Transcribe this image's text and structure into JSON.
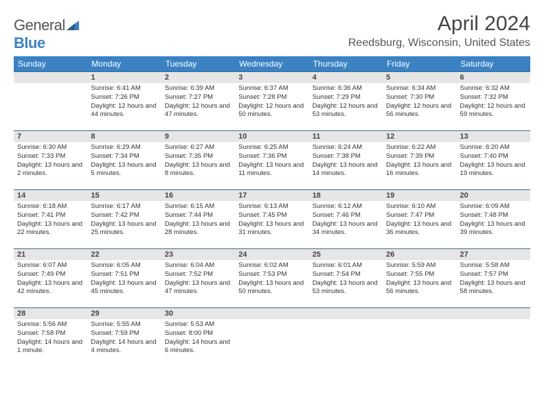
{
  "logo": {
    "textA": "General",
    "textB": "Blue"
  },
  "header": {
    "title": "April 2024",
    "location": "Reedsburg, Wisconsin, United States"
  },
  "colors": {
    "header_bg": "#3b82c4",
    "header_text": "#ffffff",
    "daynum_bg": "#e6e6e6",
    "daynum_border": "#3b6a94",
    "text": "#333333"
  },
  "weekdays": [
    "Sunday",
    "Monday",
    "Tuesday",
    "Wednesday",
    "Thursday",
    "Friday",
    "Saturday"
  ],
  "weeks": [
    [
      null,
      {
        "n": "1",
        "sunrise": "6:41 AM",
        "sunset": "7:26 PM",
        "daylight": "12 hours and 44 minutes."
      },
      {
        "n": "2",
        "sunrise": "6:39 AM",
        "sunset": "7:27 PM",
        "daylight": "12 hours and 47 minutes."
      },
      {
        "n": "3",
        "sunrise": "6:37 AM",
        "sunset": "7:28 PM",
        "daylight": "12 hours and 50 minutes."
      },
      {
        "n": "4",
        "sunrise": "6:36 AM",
        "sunset": "7:29 PM",
        "daylight": "12 hours and 53 minutes."
      },
      {
        "n": "5",
        "sunrise": "6:34 AM",
        "sunset": "7:30 PM",
        "daylight": "12 hours and 56 minutes."
      },
      {
        "n": "6",
        "sunrise": "6:32 AM",
        "sunset": "7:32 PM",
        "daylight": "12 hours and 59 minutes."
      }
    ],
    [
      {
        "n": "7",
        "sunrise": "6:30 AM",
        "sunset": "7:33 PM",
        "daylight": "13 hours and 2 minutes."
      },
      {
        "n": "8",
        "sunrise": "6:29 AM",
        "sunset": "7:34 PM",
        "daylight": "13 hours and 5 minutes."
      },
      {
        "n": "9",
        "sunrise": "6:27 AM",
        "sunset": "7:35 PM",
        "daylight": "13 hours and 8 minutes."
      },
      {
        "n": "10",
        "sunrise": "6:25 AM",
        "sunset": "7:36 PM",
        "daylight": "13 hours and 11 minutes."
      },
      {
        "n": "11",
        "sunrise": "6:24 AM",
        "sunset": "7:38 PM",
        "daylight": "13 hours and 14 minutes."
      },
      {
        "n": "12",
        "sunrise": "6:22 AM",
        "sunset": "7:39 PM",
        "daylight": "13 hours and 16 minutes."
      },
      {
        "n": "13",
        "sunrise": "6:20 AM",
        "sunset": "7:40 PM",
        "daylight": "13 hours and 19 minutes."
      }
    ],
    [
      {
        "n": "14",
        "sunrise": "6:18 AM",
        "sunset": "7:41 PM",
        "daylight": "13 hours and 22 minutes."
      },
      {
        "n": "15",
        "sunrise": "6:17 AM",
        "sunset": "7:42 PM",
        "daylight": "13 hours and 25 minutes."
      },
      {
        "n": "16",
        "sunrise": "6:15 AM",
        "sunset": "7:44 PM",
        "daylight": "13 hours and 28 minutes."
      },
      {
        "n": "17",
        "sunrise": "6:13 AM",
        "sunset": "7:45 PM",
        "daylight": "13 hours and 31 minutes."
      },
      {
        "n": "18",
        "sunrise": "6:12 AM",
        "sunset": "7:46 PM",
        "daylight": "13 hours and 34 minutes."
      },
      {
        "n": "19",
        "sunrise": "6:10 AM",
        "sunset": "7:47 PM",
        "daylight": "13 hours and 36 minutes."
      },
      {
        "n": "20",
        "sunrise": "6:09 AM",
        "sunset": "7:48 PM",
        "daylight": "13 hours and 39 minutes."
      }
    ],
    [
      {
        "n": "21",
        "sunrise": "6:07 AM",
        "sunset": "7:49 PM",
        "daylight": "13 hours and 42 minutes."
      },
      {
        "n": "22",
        "sunrise": "6:05 AM",
        "sunset": "7:51 PM",
        "daylight": "13 hours and 45 minutes."
      },
      {
        "n": "23",
        "sunrise": "6:04 AM",
        "sunset": "7:52 PM",
        "daylight": "13 hours and 47 minutes."
      },
      {
        "n": "24",
        "sunrise": "6:02 AM",
        "sunset": "7:53 PM",
        "daylight": "13 hours and 50 minutes."
      },
      {
        "n": "25",
        "sunrise": "6:01 AM",
        "sunset": "7:54 PM",
        "daylight": "13 hours and 53 minutes."
      },
      {
        "n": "26",
        "sunrise": "5:59 AM",
        "sunset": "7:55 PM",
        "daylight": "13 hours and 56 minutes."
      },
      {
        "n": "27",
        "sunrise": "5:58 AM",
        "sunset": "7:57 PM",
        "daylight": "13 hours and 58 minutes."
      }
    ],
    [
      {
        "n": "28",
        "sunrise": "5:56 AM",
        "sunset": "7:58 PM",
        "daylight": "14 hours and 1 minute."
      },
      {
        "n": "29",
        "sunrise": "5:55 AM",
        "sunset": "7:59 PM",
        "daylight": "14 hours and 4 minutes."
      },
      {
        "n": "30",
        "sunrise": "5:53 AM",
        "sunset": "8:00 PM",
        "daylight": "14 hours and 6 minutes."
      },
      null,
      null,
      null,
      null
    ]
  ],
  "labels": {
    "sunrise": "Sunrise:",
    "sunset": "Sunset:",
    "daylight": "Daylight:"
  }
}
